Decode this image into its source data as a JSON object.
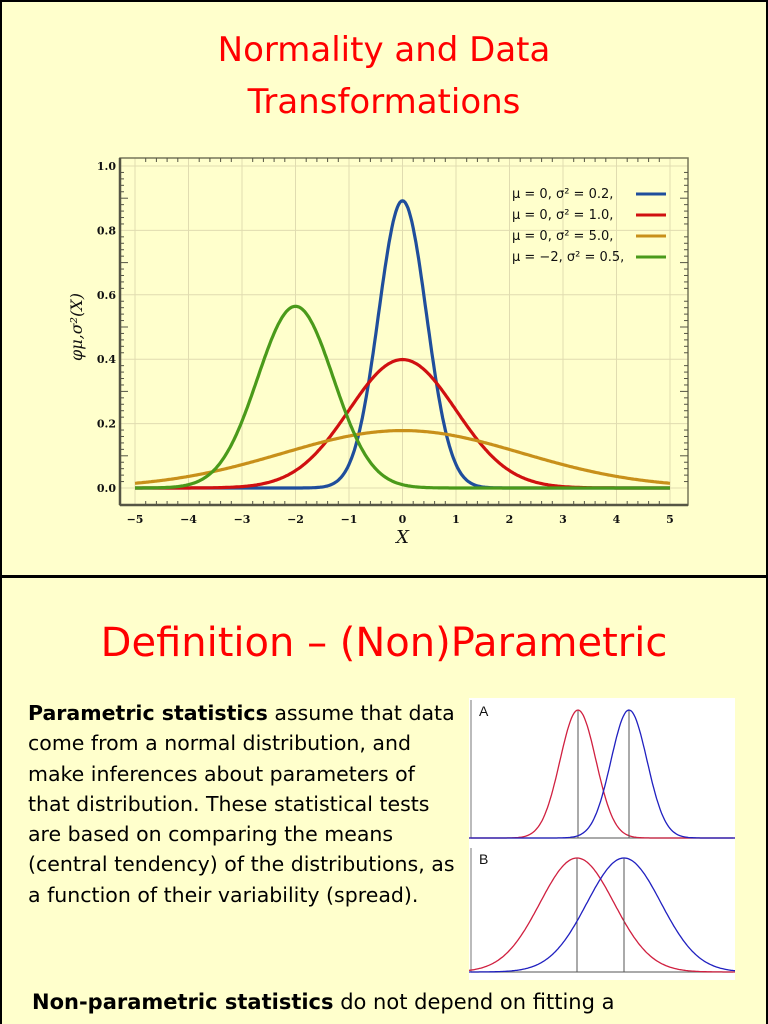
{
  "slide1": {
    "title_line1": "Normality and Data",
    "title_line2": "Transformations"
  },
  "slide2": {
    "title": "Definition – (Non)Parametric",
    "paragraph_bold": "Parametric statistics",
    "paragraph_rest": " assume that data come from a normal distribution, and make inferences about parameters of that distribution. These statistical tests are based on comparing the means (central tendency) of the distributions, as a function of their variability (spread).",
    "figure": {
      "panel_a_label": "A",
      "panel_b_label": "B"
    },
    "nonparam_bold": "Non-parametric statistics",
    "nonparam_rest": " do not depend on fitting a"
  },
  "chart_data": [
    {
      "type": "line",
      "title": "",
      "xlabel": "X",
      "ylabel": "φμ,σ²(X)",
      "xlim": [
        -5,
        5
      ],
      "ylim": [
        0,
        1.0
      ],
      "x_ticks": [
        "−5",
        "−4",
        "−3",
        "−2",
        "−1",
        "0",
        "1",
        "2",
        "3",
        "4",
        "5"
      ],
      "y_ticks": [
        "0.0",
        "0.2",
        "0.4",
        "0.6",
        "0.8",
        "1.0"
      ],
      "grid": true,
      "legend_position": "upper right",
      "series": [
        {
          "name": "μ = 0,  σ² = 0.2,",
          "mu": 0,
          "var": 0.2,
          "color": "#1f4e9c",
          "peak": 0.89
        },
        {
          "name": "μ = 0,  σ² = 1.0,",
          "mu": 0,
          "var": 1.0,
          "color": "#d01010",
          "peak": 0.4
        },
        {
          "name": "μ = 0,  σ² = 5.0,",
          "mu": 0,
          "var": 5.0,
          "color": "#c8901a",
          "peak": 0.18
        },
        {
          "name": "μ = −2, σ² = 0.5,",
          "mu": -2,
          "var": 0.5,
          "color": "#4a9a1a",
          "peak": 0.56
        }
      ]
    },
    {
      "type": "line",
      "title": "A",
      "series": [
        {
          "name": "red distribution",
          "color": "#d02040",
          "mean_rel": 0.41,
          "sd": "narrow"
        },
        {
          "name": "blue distribution",
          "color": "#2020c0",
          "mean_rel": 0.6,
          "sd": "narrow"
        }
      ]
    },
    {
      "type": "line",
      "title": "B",
      "series": [
        {
          "name": "red distribution",
          "color": "#d02040",
          "mean_rel": 0.41,
          "sd": "wide"
        },
        {
          "name": "blue distribution",
          "color": "#2020c0",
          "mean_rel": 0.58,
          "sd": "wide"
        }
      ]
    }
  ]
}
